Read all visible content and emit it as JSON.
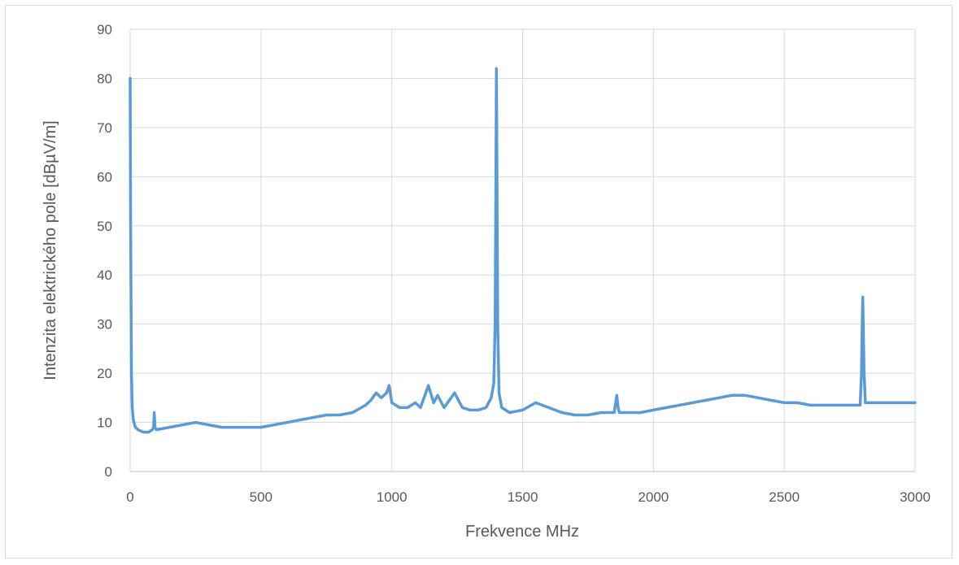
{
  "chart_data": {
    "type": "line",
    "title": "",
    "xlabel": "Frekvence MHz",
    "ylabel": "Intenzita elektrického pole [dBµV/m]",
    "xlim": [
      0,
      3000
    ],
    "ylim": [
      0,
      90
    ],
    "x_ticks": [
      0,
      500,
      1000,
      1500,
      2000,
      2500,
      3000
    ],
    "y_ticks": [
      0,
      10,
      20,
      30,
      40,
      50,
      60,
      70,
      80,
      90
    ],
    "x_tick_labels": [
      "0",
      "500",
      "1000",
      "1500",
      "2000",
      "2500",
      "3000"
    ],
    "y_tick_labels": [
      "0",
      "10",
      "20",
      "30",
      "40",
      "50",
      "60",
      "70",
      "80",
      "90"
    ],
    "grid": true,
    "legend": "none",
    "series": [
      {
        "color": "#5b9bd5",
        "x": [
          0,
          2,
          5,
          8,
          12,
          20,
          30,
          50,
          70,
          85,
          90,
          92,
          95,
          100,
          150,
          200,
          250,
          300,
          350,
          400,
          450,
          500,
          550,
          600,
          650,
          700,
          750,
          800,
          850,
          900,
          920,
          940,
          960,
          980,
          990,
          1000,
          1030,
          1060,
          1090,
          1110,
          1140,
          1160,
          1175,
          1200,
          1240,
          1270,
          1300,
          1330,
          1360,
          1380,
          1390,
          1395,
          1398,
          1400,
          1402,
          1405,
          1410,
          1420,
          1450,
          1500,
          1550,
          1600,
          1650,
          1700,
          1750,
          1800,
          1850,
          1860,
          1865,
          1870,
          1880,
          1900,
          1950,
          2000,
          2050,
          2100,
          2150,
          2200,
          2250,
          2300,
          2350,
          2400,
          2450,
          2500,
          2550,
          2600,
          2650,
          2700,
          2750,
          2790,
          2795,
          2798,
          2800,
          2802,
          2805,
          2810,
          2850,
          2900,
          2950,
          3000
        ],
        "y": [
          80,
          50,
          20,
          13,
          10.5,
          9,
          8.5,
          8,
          8,
          8.5,
          9,
          12,
          9,
          8.5,
          9,
          9.5,
          10,
          9.5,
          9,
          9,
          9,
          9,
          9.5,
          10,
          10.5,
          11,
          11.5,
          11.5,
          12,
          13.5,
          14.5,
          16,
          15,
          16,
          17.5,
          14,
          13,
          13,
          14,
          13,
          17.5,
          14,
          15.5,
          13,
          16,
          13,
          12.5,
          12.5,
          13,
          15,
          18,
          30,
          60,
          82,
          60,
          30,
          16,
          13,
          12,
          12.5,
          14,
          13,
          12,
          11.5,
          11.5,
          12,
          12,
          15.5,
          13,
          12,
          12,
          12,
          12,
          12.5,
          13,
          13.5,
          14,
          14.5,
          15,
          15.5,
          15.5,
          15,
          14.5,
          14,
          14,
          13.5,
          13.5,
          13.5,
          13.5,
          13.5,
          20,
          30,
          35.5,
          30,
          20,
          14,
          14,
          14,
          14,
          14
        ]
      }
    ]
  }
}
